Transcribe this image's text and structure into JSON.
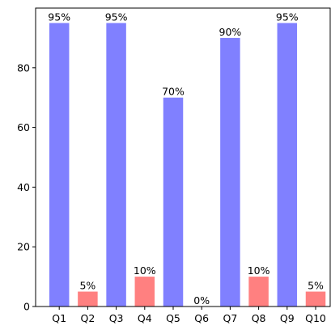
{
  "chart_data": {
    "type": "bar",
    "categories": [
      "Q1",
      "Q2",
      "Q3",
      "Q4",
      "Q5",
      "Q6",
      "Q7",
      "Q8",
      "Q9",
      "Q10"
    ],
    "values": [
      95,
      5,
      95,
      10,
      70,
      0,
      90,
      10,
      95,
      5
    ],
    "value_labels": [
      "95%",
      "5%",
      "95%",
      "10%",
      "70%",
      "0%",
      "90%",
      "10%",
      "95%",
      "5%"
    ],
    "bar_colors": [
      "#8080ff",
      "#ff8080",
      "#8080ff",
      "#ff8080",
      "#8080ff",
      "#ff8080",
      "#8080ff",
      "#ff8080",
      "#8080ff",
      "#ff8080"
    ],
    "title": "",
    "xlabel": "",
    "ylabel": "",
    "ylim": [
      0,
      100
    ],
    "yticks": [
      0,
      20,
      40,
      60,
      80
    ],
    "grid": false,
    "legend": false
  }
}
